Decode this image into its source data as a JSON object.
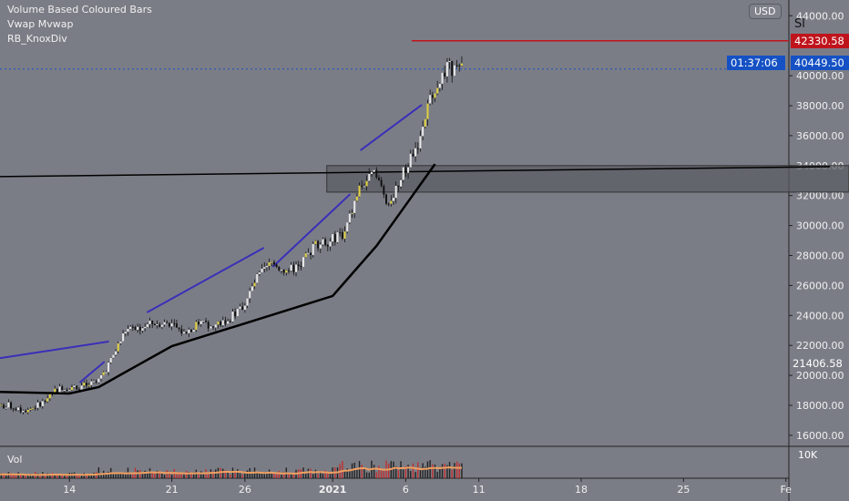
{
  "indicators": [
    "Volume Based Coloured Bars",
    "Vwap Mvwap",
    "RB_KnoxDiv"
  ],
  "currency": "USD",
  "symbol_label": "Sl",
  "volume_label": "Vol",
  "volume_axis_label": "10K",
  "labels": {
    "red_price": "42330.58",
    "last_price": "40449.50",
    "countdown": "01:37:06",
    "crosshair_price": "21406.58"
  },
  "colors": {
    "background": "#7b7d86",
    "up": "#e8e8e8",
    "down": "#111111",
    "red": "#c0141c",
    "blue": "#1551c4",
    "div": "#3a2fb8",
    "vwap": "#000000",
    "vol_ma": "#f0a060"
  },
  "chart_data": {
    "type": "candlestick",
    "ylim": [
      15000,
      45500
    ],
    "yticks": [
      "44000.00",
      "40000.00",
      "38000.00",
      "36000.00",
      "34000.00",
      "32000.00",
      "30000.00",
      "28000.00",
      "26000.00",
      "24000.00",
      "22000.00",
      "20000.00",
      "18000.00",
      "16000.00"
    ],
    "ytick_values": [
      44000,
      40000,
      38000,
      36000,
      34000,
      32000,
      30000,
      28000,
      26000,
      24000,
      22000,
      20000,
      18000,
      16000
    ],
    "xticks": [
      "14",
      "21",
      "26",
      "2021",
      "6",
      "11",
      "18",
      "25",
      "Fe"
    ],
    "xtick_days": [
      5,
      12,
      17,
      23,
      28,
      33,
      40,
      47,
      54
    ],
    "daily_close": [
      18000,
      17600,
      18000,
      19000,
      19200,
      19300,
      19400,
      21000,
      23000,
      23200,
      23500,
      23500,
      22800,
      23500,
      23300,
      23700,
      24500,
      26500,
      27500,
      27000,
      27300,
      28800,
      29000,
      29500,
      32500,
      33500,
      31500,
      33500,
      35500,
      39000,
      40500,
      40400
    ],
    "vwap": [
      [
        0,
        18900
      ],
      [
        5,
        18790
      ],
      [
        7,
        19220
      ],
      [
        12,
        21950
      ],
      [
        17,
        23470
      ],
      [
        23,
        25300
      ],
      [
        26,
        28640
      ],
      [
        28,
        31370
      ],
      [
        30,
        34100
      ]
    ],
    "divergence_lines": [
      [
        [
          0.25,
          21150
        ],
        [
          7.7,
          22260
        ]
      ],
      [
        [
          5.7,
          19520
        ],
        [
          7.4,
          20920
        ]
      ],
      [
        [
          10.3,
          24200
        ],
        [
          18.3,
          28520
        ]
      ],
      [
        [
          18.9,
          27240
        ],
        [
          24.2,
          32100
        ]
      ],
      [
        [
          24.9,
          35020
        ],
        [
          29.1,
          38060
        ]
      ]
    ],
    "trendline": [
      [
        0,
        33260
      ],
      [
        57,
        33930
      ]
    ],
    "zone": [
      22.6,
      34000,
      32230
    ],
    "red_level": 42330.58,
    "last_price": 40449.5
  }
}
